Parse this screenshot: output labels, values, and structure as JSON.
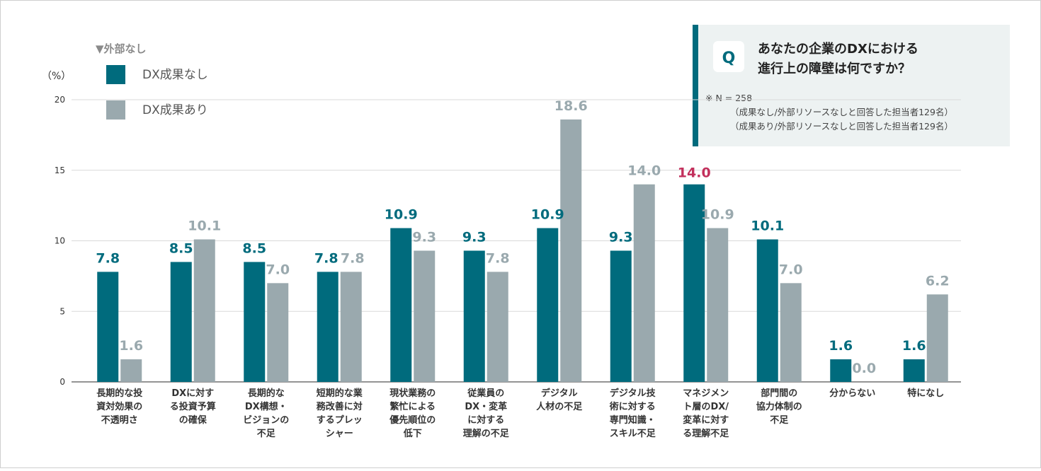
{
  "section_label": "▼外部なし",
  "unit_label": "（%）",
  "legend": [
    {
      "label": "DX成果なし",
      "color": "#006b7d"
    },
    {
      "label": "DX成果あり",
      "color": "#9aa9ae"
    }
  ],
  "question": {
    "badge": "Q",
    "lines": [
      "あなたの企業のDXにおける",
      "進行上の障壁は何ですか？"
    ],
    "notes": [
      "※ N = 258",
      "（成果なし/外部リソースなしと回答した担当者129名）",
      "（成果あり/外部リソースなしと回答した担当者129名）"
    ]
  },
  "colors": {
    "series1": "#006b7d",
    "series2": "#9aa9ae",
    "highlight": "#c2305c",
    "grid": "#d9d9d9",
    "panel": "#edf2f2",
    "panel_bar": "#006b7d"
  },
  "chart_data": {
    "type": "bar",
    "ylim": [
      0,
      20
    ],
    "yticks": [
      0,
      5,
      10,
      15,
      20
    ],
    "grid": true,
    "legend_position": "top-left",
    "highlight_index": 8,
    "categories": [
      [
        "長期的な投",
        "資対効果の",
        "不透明さ"
      ],
      [
        "DXに対す",
        "る投資予算",
        "の確保"
      ],
      [
        "長期的な",
        "DX構想・",
        "ビジョンの",
        "不足"
      ],
      [
        "短期的な業",
        "務改善に対",
        "するプレッ",
        "シャー"
      ],
      [
        "現状業務の",
        "繁忙による",
        "優先順位の",
        "低下"
      ],
      [
        "従業員の",
        "DX・変革",
        "に対する",
        "理解の不足"
      ],
      [
        "デジタル",
        "人材の不足"
      ],
      [
        "デジタル技",
        "術に対する",
        "専門知識・",
        "スキル不足"
      ],
      [
        "マネジメン",
        "ト層のDX/",
        "変革に対す",
        "る理解不足"
      ],
      [
        "部門間の",
        "協力体制の",
        "不足"
      ],
      [
        "分からない"
      ],
      [
        "特になし"
      ]
    ],
    "series": [
      {
        "name": "DX成果なし",
        "values": [
          7.8,
          8.5,
          8.5,
          7.8,
          10.9,
          9.3,
          10.9,
          9.3,
          14.0,
          10.1,
          1.6,
          1.6
        ]
      },
      {
        "name": "DX成果あり",
        "values": [
          1.6,
          10.1,
          7.0,
          7.8,
          9.3,
          7.8,
          18.6,
          14.0,
          10.9,
          7.0,
          0.0,
          6.2
        ]
      }
    ]
  }
}
